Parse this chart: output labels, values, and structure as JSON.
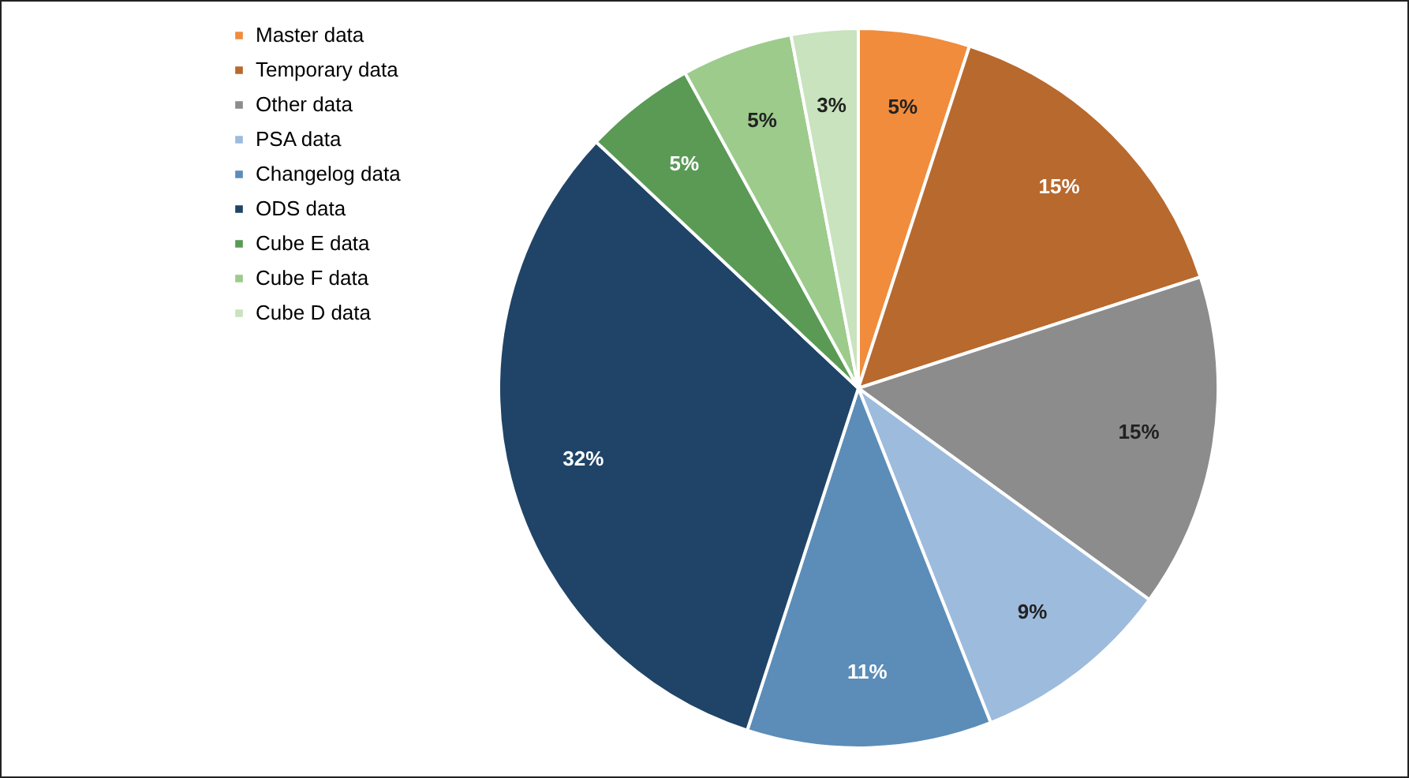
{
  "chart_data": {
    "type": "pie",
    "categories": [
      "Master data",
      "Temporary data",
      "Other data",
      "PSA data",
      "Changelog data",
      "ODS data",
      "Cube E data",
      "Cube F data",
      "Cube D data"
    ],
    "values": [
      5,
      15,
      15,
      9,
      11,
      32,
      5,
      5,
      3
    ],
    "colors": [
      "#f08c3c",
      "#b8692e",
      "#8c8c8c",
      "#9dbbdc",
      "#5b8db8",
      "#1f4467",
      "#5a9a55",
      "#9ccb8c",
      "#c8e3bd"
    ],
    "value_labels": [
      "5%",
      "15%",
      "15%",
      "9%",
      "11%",
      "32%",
      "5%",
      "5%",
      "3%"
    ],
    "legend": "left"
  }
}
